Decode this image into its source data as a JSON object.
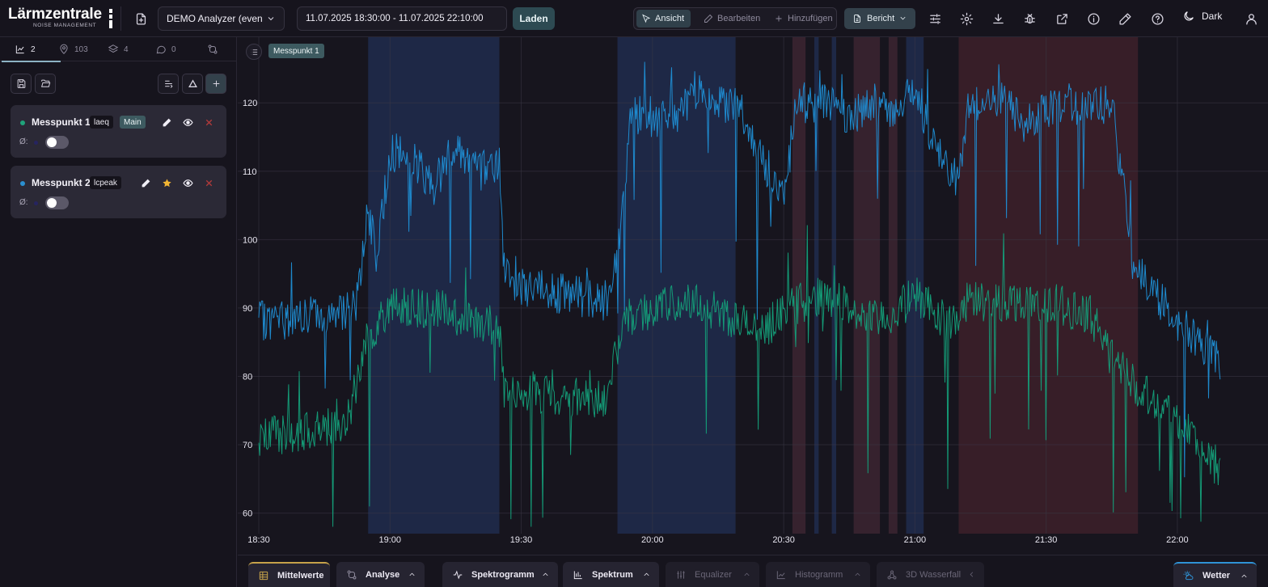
{
  "app": {
    "logo_name": "Lärmzentrale",
    "logo_sub": "NOISE MANAGEMENT"
  },
  "toolbar": {
    "analyzer_select": "DEMO Analyzer (even",
    "date_range": "11.07.2025 18:30:00 - 11.07.2025 22:10:00",
    "load_label": "Laden",
    "modes": [
      {
        "label": "Ansicht",
        "icon": "cursor-icon",
        "active": true
      },
      {
        "label": "Bearbeiten",
        "icon": "pencil-icon",
        "active": false
      },
      {
        "label": "Hinzufügen",
        "icon": "plus-icon",
        "active": false
      }
    ],
    "report_label": "Bericht",
    "theme_label": "Dark"
  },
  "sidebar": {
    "tabs": [
      {
        "icon": "chart-icon",
        "count": "2",
        "active": true
      },
      {
        "icon": "map-pin-icon",
        "count": "103",
        "active": false
      },
      {
        "icon": "layers-icon",
        "count": "4",
        "active": false
      },
      {
        "icon": "comment-icon",
        "count": "0",
        "active": false
      },
      {
        "icon": "compare-icon",
        "count": "",
        "active": false
      }
    ],
    "cards": [
      {
        "name": "Messpunkt 1",
        "tags": [
          "laeq",
          "Main"
        ],
        "color": "#1fa37b",
        "avg_label": "Ø:",
        "starred": false
      },
      {
        "name": "Messpunkt 2",
        "tags": [
          "lcpeak"
        ],
        "color": "#2b8fd0",
        "avg_label": "Ø:",
        "starred": true
      }
    ]
  },
  "chart_data": {
    "type": "line",
    "legend_chip": "Messpunkt 1",
    "x_ticks": [
      "18:30",
      "19:00",
      "19:30",
      "20:00",
      "20:30",
      "21:00",
      "21:30",
      "22:00"
    ],
    "y_ticks": [
      60,
      70,
      80,
      90,
      100,
      110,
      120
    ],
    "xlim": [
      "18:30",
      "22:10"
    ],
    "ylim": [
      57,
      127
    ],
    "grid": true,
    "series": [
      {
        "color": "#1f8fd6",
        "points": [
          [
            "18:30",
            88
          ],
          [
            "18:45",
            89
          ],
          [
            "18:52",
            90
          ],
          [
            "18:55",
            104
          ],
          [
            "18:57",
            97
          ],
          [
            "19:00",
            113
          ],
          [
            "19:05",
            112
          ],
          [
            "19:10",
            108
          ],
          [
            "19:15",
            114
          ],
          [
            "19:20",
            110
          ],
          [
            "19:25",
            111
          ],
          [
            "19:26",
            96
          ],
          [
            "19:30",
            93
          ],
          [
            "19:40",
            92
          ],
          [
            "19:50",
            91
          ],
          [
            "19:53",
            103
          ],
          [
            "19:55",
            118
          ],
          [
            "20:00",
            118
          ],
          [
            "20:05",
            117
          ],
          [
            "20:10",
            122
          ],
          [
            "20:15",
            120
          ],
          [
            "20:20",
            119
          ],
          [
            "20:25",
            112
          ],
          [
            "20:30",
            106
          ],
          [
            "20:33",
            120
          ],
          [
            "20:40",
            120
          ],
          [
            "20:45",
            118
          ],
          [
            "20:50",
            120
          ],
          [
            "20:55",
            119
          ],
          [
            "21:00",
            122
          ],
          [
            "21:05",
            113
          ],
          [
            "21:10",
            108
          ],
          [
            "21:12",
            120
          ],
          [
            "21:20",
            120
          ],
          [
            "21:25",
            117
          ],
          [
            "21:30",
            119
          ],
          [
            "21:35",
            120
          ],
          [
            "21:40",
            119
          ],
          [
            "21:45",
            120
          ],
          [
            "21:50",
            96
          ],
          [
            "22:00",
            88
          ],
          [
            "22:10",
            82
          ]
        ]
      },
      {
        "color": "#14a07a",
        "points": [
          [
            "18:30",
            71
          ],
          [
            "18:40",
            72
          ],
          [
            "18:50",
            73
          ],
          [
            "18:55",
            86
          ],
          [
            "19:00",
            90
          ],
          [
            "19:10",
            90
          ],
          [
            "19:20",
            88
          ],
          [
            "19:25",
            87
          ],
          [
            "19:26",
            78
          ],
          [
            "19:30",
            78
          ],
          [
            "19:40",
            77
          ],
          [
            "19:50",
            77
          ],
          [
            "19:53",
            88
          ],
          [
            "20:00",
            90
          ],
          [
            "20:10",
            91
          ],
          [
            "20:20",
            88
          ],
          [
            "20:25",
            86
          ],
          [
            "20:30",
            90
          ],
          [
            "20:40",
            92
          ],
          [
            "20:50",
            88
          ],
          [
            "20:55",
            89
          ],
          [
            "21:00",
            92
          ],
          [
            "21:05",
            89
          ],
          [
            "21:10",
            88
          ],
          [
            "21:12",
            91
          ],
          [
            "21:20",
            91
          ],
          [
            "21:30",
            91
          ],
          [
            "21:40",
            89
          ],
          [
            "21:50",
            79
          ],
          [
            "22:00",
            74
          ],
          [
            "22:10",
            66
          ]
        ]
      }
    ],
    "bands": [
      {
        "from": "18:55",
        "to": "19:25",
        "color": "#1f2a4a"
      },
      {
        "from": "19:52",
        "to": "20:19",
        "color": "#1f2a4a"
      },
      {
        "from": "20:32",
        "to": "20:35",
        "color": "#3a2430"
      },
      {
        "from": "20:37",
        "to": "20:38",
        "color": "#1f2a4a"
      },
      {
        "from": "20:41",
        "to": "20:42",
        "color": "#1f2a4a"
      },
      {
        "from": "20:46",
        "to": "20:52",
        "color": "#3a2430"
      },
      {
        "from": "20:54",
        "to": "20:56",
        "color": "#3a2430"
      },
      {
        "from": "20:58",
        "to": "21:02",
        "color": "#1f2a4a"
      },
      {
        "from": "21:10",
        "to": "21:51",
        "color": "#3b1f29"
      }
    ]
  },
  "bottom": {
    "tabs": [
      {
        "label": "Mittelwerte",
        "icon": "table-icon",
        "disabled": false,
        "chevron": false
      },
      {
        "label": "Analyse",
        "icon": "compare-icon",
        "disabled": false,
        "chevron": true
      },
      {
        "label": "Spektrogramm",
        "icon": "pulse-icon",
        "disabled": false,
        "chevron": true
      },
      {
        "label": "Spektrum",
        "icon": "bar-chart-icon",
        "disabled": false,
        "chevron": true
      },
      {
        "label": "Equalizer",
        "icon": "sliders-icon",
        "disabled": true,
        "chevron": true
      },
      {
        "label": "Histogramm",
        "icon": "line-chart-icon",
        "disabled": true,
        "chevron": true
      },
      {
        "label": "3D Wasserfall",
        "icon": "network-icon",
        "disabled": true,
        "chevron": true
      },
      {
        "label": "Wetter",
        "icon": "weather-icon",
        "disabled": false,
        "chevron": true
      }
    ]
  }
}
